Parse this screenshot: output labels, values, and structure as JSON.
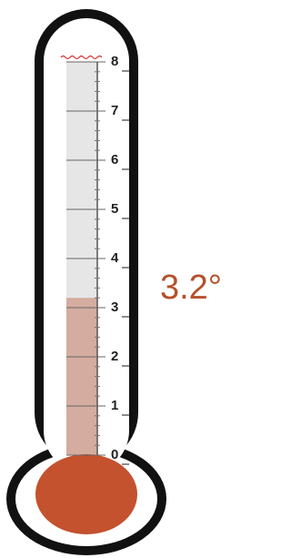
{
  "chart_data": {
    "type": "thermometer",
    "value": 3.2,
    "value_label": "3.2°",
    "ylim": [
      0,
      8
    ],
    "yticks": [
      0,
      1,
      2,
      3,
      4,
      5,
      6,
      7,
      8
    ],
    "color": "#d4aca0",
    "bulb_color": "#c4522e",
    "track_color": "#e6e6e6"
  }
}
